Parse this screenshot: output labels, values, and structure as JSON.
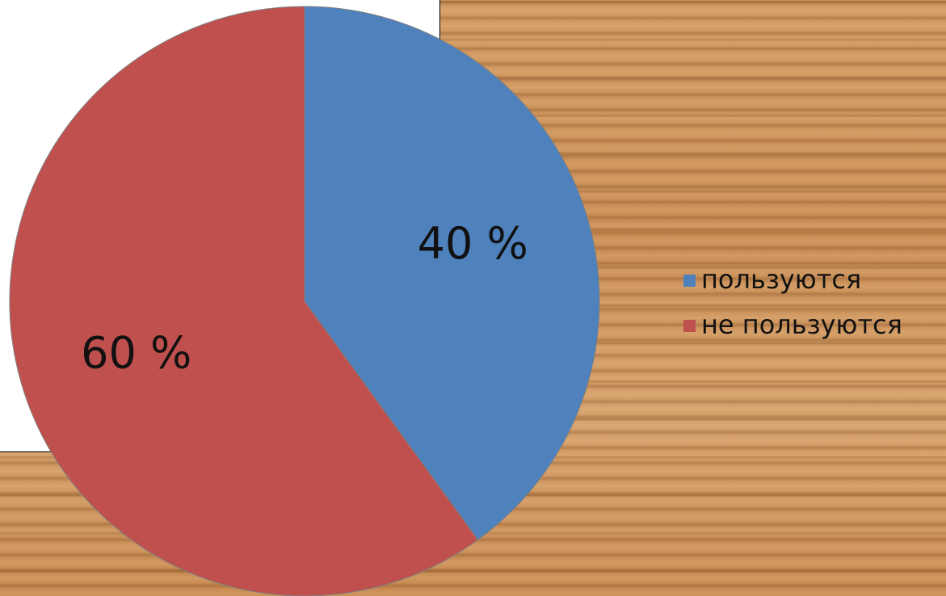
{
  "chart_data": {
    "type": "pie",
    "categories": [
      "пользуются",
      "не пользуются"
    ],
    "values": [
      40,
      60
    ],
    "value_labels": [
      "40 %",
      "60 %"
    ],
    "colors": [
      "#4f81bd",
      "#c0504d"
    ],
    "legend": "right"
  }
}
